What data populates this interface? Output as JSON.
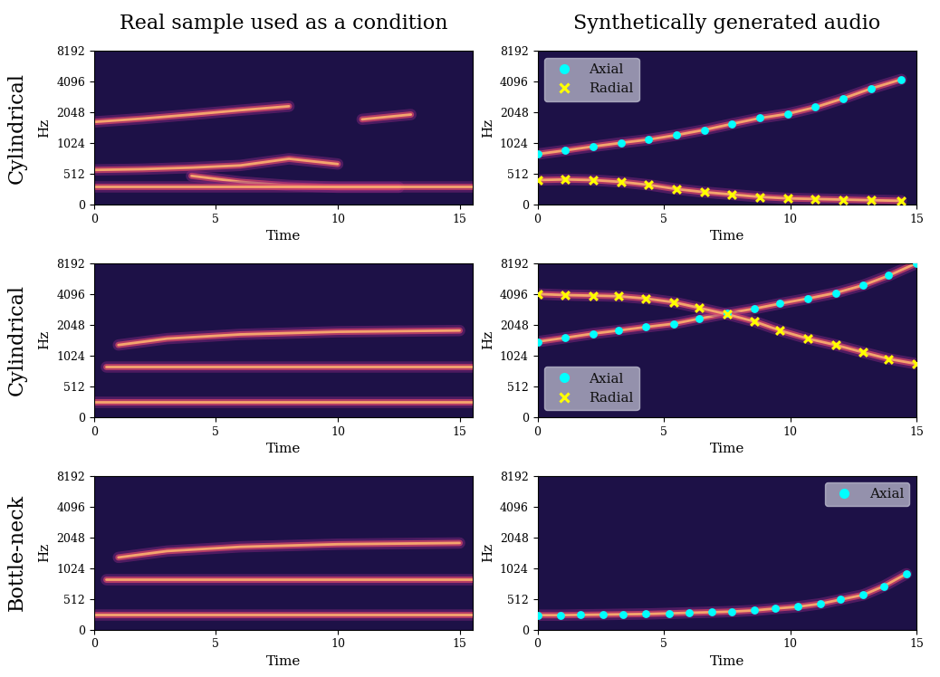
{
  "column_titles": [
    "Real sample used as a condition",
    "Synthetically generated audio"
  ],
  "row_labels": [
    "Cylindrical",
    "Cylindrical",
    "Bottle-neck"
  ],
  "chart_data": [
    {
      "type": "spectrogram",
      "x_label": "Time",
      "y_label": "Hz",
      "log": "y",
      "xlim": [
        0,
        15.55
      ],
      "xticks": [
        0,
        5,
        10,
        15
      ],
      "ylim": [
        0,
        8192
      ],
      "yticks": [
        0,
        512,
        1024,
        2048,
        4096,
        8192
      ],
      "ridges": [
        {
          "x": [
            0,
            2,
            4,
            6,
            8
          ],
          "y": [
            1650,
            1780,
            1950,
            2150,
            2350
          ]
        },
        {
          "x": [
            11,
            13
          ],
          "y": [
            1750,
            1950
          ]
        },
        {
          "x": [
            0,
            2,
            4,
            6,
            8,
            10
          ],
          "y": [
            560,
            570,
            590,
            620,
            720,
            640
          ]
        },
        {
          "x": [
            4,
            6,
            8,
            10,
            12.5
          ],
          "y": [
            480,
            380,
            320,
            290,
            290
          ]
        },
        {
          "x": [
            0,
            15.55
          ],
          "y": [
            300,
            300
          ]
        }
      ]
    },
    {
      "type": "spectrogram",
      "x_label": "Time",
      "y_label": "Hz",
      "log": "y",
      "xlim": [
        0,
        15
      ],
      "xticks": [
        0,
        5,
        10,
        15
      ],
      "ylim": [
        0,
        8192
      ],
      "yticks": [
        0,
        512,
        1024,
        2048,
        4096,
        8192
      ],
      "legend": "upper left",
      "series": [
        {
          "name": "Axial",
          "color": "#00ffff",
          "marker": "o",
          "x": [
            0,
            1.1,
            2.2,
            3.3,
            4.4,
            5.5,
            6.6,
            7.7,
            8.8,
            9.9,
            11.0,
            12.1,
            13.2,
            14.4
          ],
          "values": [
            800,
            870,
            950,
            1030,
            1110,
            1230,
            1380,
            1580,
            1800,
            1980,
            2300,
            2800,
            3500,
            4300
          ]
        },
        {
          "name": "Radial",
          "color": "#ffff00",
          "marker": "x",
          "x": [
            0,
            1.1,
            2.2,
            3.3,
            4.4,
            5.5,
            6.6,
            7.7,
            8.8,
            9.9,
            11.0,
            12.1,
            13.2,
            14.4
          ],
          "values": [
            410,
            420,
            410,
            380,
            330,
            260,
            210,
            170,
            130,
            105,
            95,
            85,
            75,
            65
          ]
        }
      ]
    },
    {
      "type": "spectrogram",
      "x_label": "Time",
      "y_label": "Hz",
      "log": "y",
      "xlim": [
        0,
        15.55
      ],
      "xticks": [
        0,
        5,
        10,
        15
      ],
      "ylim": [
        0,
        8192
      ],
      "yticks": [
        0,
        512,
        1024,
        2048,
        4096,
        8192
      ],
      "ridges": [
        {
          "x": [
            1,
            3,
            6,
            10,
            15
          ],
          "y": [
            1300,
            1500,
            1650,
            1750,
            1800
          ]
        },
        {
          "x": [
            0.5,
            15.55
          ],
          "y": [
            800,
            800
          ]
        },
        {
          "x": [
            0,
            15.55
          ],
          "y": [
            250,
            250
          ]
        }
      ]
    },
    {
      "type": "spectrogram",
      "x_label": "Time",
      "y_label": "Hz",
      "log": "y",
      "xlim": [
        0,
        15
      ],
      "xticks": [
        0,
        5,
        10,
        15
      ],
      "ylim": [
        0,
        8192
      ],
      "yticks": [
        0,
        512,
        1024,
        2048,
        4096,
        8192
      ],
      "legend": "lower left",
      "series": [
        {
          "name": "Axial",
          "color": "#00ffff",
          "marker": "o",
          "x": [
            0,
            1.1,
            2.2,
            3.2,
            4.3,
            5.4,
            6.4,
            7.5,
            8.6,
            9.6,
            10.7,
            11.8,
            12.9,
            13.9,
            15
          ],
          "values": [
            1400,
            1530,
            1680,
            1800,
            1950,
            2100,
            2350,
            2650,
            2950,
            3300,
            3700,
            4200,
            5000,
            6200,
            8192
          ]
        },
        {
          "name": "Radial",
          "color": "#ffff00",
          "marker": "x",
          "x": [
            0,
            1.1,
            2.2,
            3.2,
            4.3,
            5.4,
            6.4,
            7.5,
            8.6,
            9.6,
            10.7,
            11.8,
            12.9,
            13.9,
            15
          ],
          "values": [
            4096,
            4000,
            3950,
            3900,
            3700,
            3400,
            3000,
            2600,
            2200,
            1800,
            1500,
            1300,
            1100,
            950,
            850
          ]
        }
      ]
    },
    {
      "type": "spectrogram",
      "x_label": "Time",
      "y_label": "Hz",
      "log": "y",
      "xlim": [
        0,
        15.55
      ],
      "xticks": [
        0,
        5,
        10,
        15
      ],
      "ylim": [
        0,
        8192
      ],
      "yticks": [
        0,
        512,
        1024,
        2048,
        4096,
        8192
      ],
      "ridges": [
        {
          "x": [
            1,
            3,
            6,
            10,
            15
          ],
          "y": [
            1300,
            1500,
            1650,
            1750,
            1800
          ]
        },
        {
          "x": [
            0.5,
            15.55
          ],
          "y": [
            800,
            800
          ]
        },
        {
          "x": [
            0,
            15.55
          ],
          "y": [
            250,
            250
          ]
        }
      ]
    },
    {
      "type": "spectrogram",
      "x_label": "Time",
      "y_label": "Hz",
      "log": "y",
      "xlim": [
        0,
        15
      ],
      "xticks": [
        0,
        5,
        10,
        15
      ],
      "ylim": [
        0,
        8192
      ],
      "yticks": [
        0,
        512,
        1024,
        2048,
        4096,
        8192
      ],
      "legend": "upper right",
      "series": [
        {
          "name": "Axial",
          "color": "#00ffff",
          "marker": "o",
          "x": [
            0,
            0.9,
            1.7,
            2.6,
            3.4,
            4.3,
            5.2,
            6.0,
            6.9,
            7.7,
            8.6,
            9.4,
            10.3,
            11.2,
            12.0,
            12.9,
            13.7,
            14.6
          ],
          "values": [
            240,
            240,
            245,
            250,
            255,
            260,
            270,
            280,
            290,
            300,
            320,
            350,
            380,
            430,
            500,
            560,
            680,
            900
          ]
        }
      ]
    }
  ]
}
